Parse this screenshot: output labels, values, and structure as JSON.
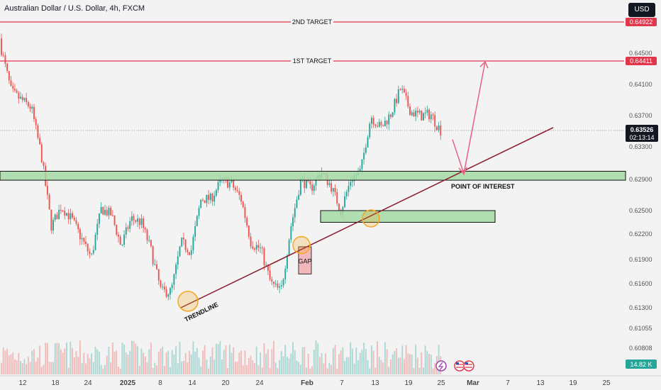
{
  "header": {
    "symbol_title": "Australian Dollar / U.S. Dollar, 4h, FXCM",
    "currency_button": "USD"
  },
  "annotations": {
    "target2": "2ND TARGET",
    "target1": "1ST TARGET",
    "poi": "POINT OF INTEREST",
    "trendline": "TRENDLINE",
    "gap": "GAP"
  },
  "price_tags": {
    "target2": "0.64922",
    "target1": "0.64411",
    "last": "0.63526",
    "countdown": "02:13:14",
    "volume": "14.82 K"
  },
  "colors": {
    "target_line": "#e0374d",
    "zone_fill": "#a3d9a5",
    "trendline": "#8b1a2a",
    "arrow": "#e8607f",
    "up_candle": "#26a69a",
    "down_candle": "#ef5350",
    "circle": "#f5a623",
    "last_tag": "#131722"
  },
  "icons": [
    "lightning-icon",
    "us-flag-icon",
    "us-flag-icon"
  ],
  "chart_data": {
    "type": "candlestick",
    "title": "Australian Dollar / U.S. Dollar, 4h, FXCM",
    "y_axis_ticks": [
      "0.64500",
      "0.64100",
      "0.63700",
      "0.63300",
      "0.62900",
      "0.62500",
      "0.62200",
      "0.61900",
      "0.61600",
      "0.61300",
      "0.61055",
      "0.60808"
    ],
    "x_axis_ticks": [
      "12",
      "18",
      "24",
      "2025",
      "8",
      "14",
      "20",
      "24",
      "Feb",
      "7",
      "13",
      "19",
      "25",
      "Mar",
      "7",
      "13",
      "19",
      "25"
    ],
    "ylim": [
      0.6068,
      0.6508
    ],
    "grid": false,
    "levels": [
      {
        "name": "2ND TARGET",
        "price": 0.64922
      },
      {
        "name": "1ST TARGET",
        "price": 0.64411
      }
    ],
    "zones": [
      {
        "name": "POINT OF INTEREST",
        "low": 0.6289,
        "high": 0.63
      },
      {
        "name": "lower zone",
        "low": 0.6235,
        "high": 0.625
      }
    ],
    "last_price": 0.63526,
    "path": [
      [
        0.647,
        0.6455
      ],
      [
        0.643,
        0.64
      ],
      [
        0.638,
        0.639
      ],
      [
        0.642,
        0.638
      ],
      [
        0.636,
        0.632
      ],
      [
        0.63,
        0.623
      ],
      [
        0.623,
        0.6255
      ],
      [
        0.626,
        0.624
      ],
      [
        0.6238,
        0.6215
      ],
      [
        0.6222,
        0.6192
      ],
      [
        0.621,
        0.6252
      ],
      [
        0.626,
        0.6245
      ],
      [
        0.6232,
        0.6205
      ],
      [
        0.621,
        0.624
      ],
      [
        0.6285,
        0.6235
      ],
      [
        0.6215,
        0.62
      ],
      [
        0.618,
        0.615
      ],
      [
        0.614,
        0.615
      ],
      [
        0.6175,
        0.621
      ],
      [
        0.624,
        0.62
      ],
      [
        0.6205,
        0.6265
      ],
      [
        0.6285,
        0.6265
      ],
      [
        0.63,
        0.6288
      ],
      [
        0.632,
        0.6285
      ],
      [
        0.6282,
        0.6265
      ],
      [
        0.623,
        0.621
      ],
      [
        0.622,
        0.6202
      ],
      [
        0.62,
        0.616
      ],
      [
        0.613,
        0.615
      ],
      [
        0.618,
        0.623
      ],
      [
        0.6275,
        0.629
      ],
      [
        0.6292,
        0.6278
      ],
      [
        0.6285,
        0.63
      ],
      [
        0.6296,
        0.6282
      ],
      [
        0.6275,
        0.625
      ],
      [
        0.626,
        0.629
      ],
      [
        0.631,
        0.63
      ],
      [
        0.6345,
        0.637
      ],
      [
        0.6375,
        0.6355
      ],
      [
        0.636,
        0.6372
      ],
      [
        0.6395,
        0.6405
      ],
      [
        0.6385,
        0.6375
      ],
      [
        0.636,
        0.637
      ],
      [
        0.639,
        0.6372
      ],
      [
        0.6365,
        0.6352
      ]
    ],
    "volume_label": "14.82 K"
  }
}
